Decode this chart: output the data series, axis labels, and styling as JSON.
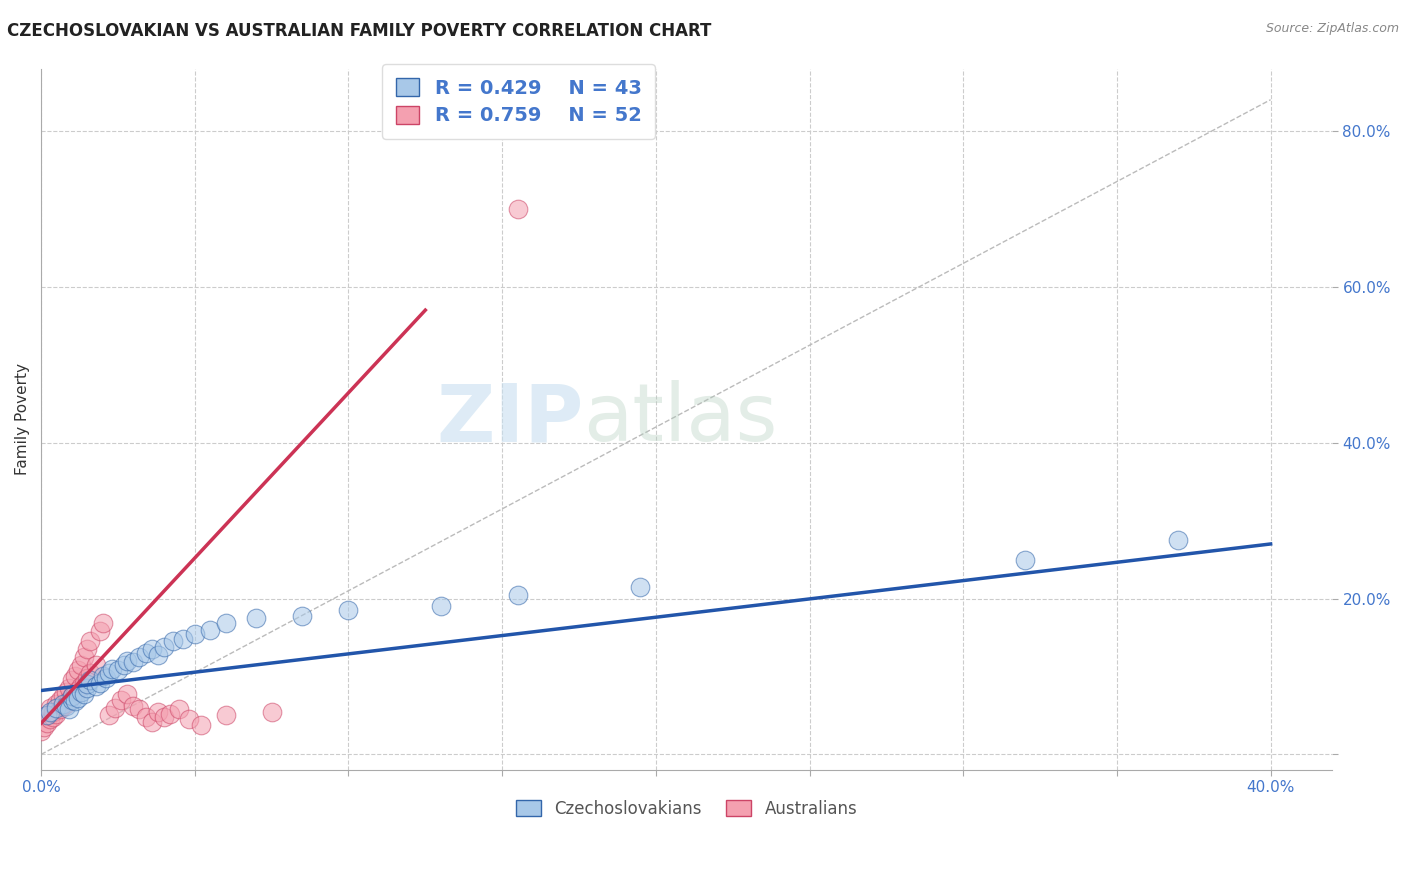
{
  "title": "CZECHOSLOVAKIAN VS AUSTRALIAN FAMILY POVERTY CORRELATION CHART",
  "source": "Source: ZipAtlas.com",
  "ylabel": "Family Poverty",
  "xlim": [
    0.0,
    0.42
  ],
  "ylim": [
    -0.02,
    0.88
  ],
  "xticks": [
    0.0,
    0.05,
    0.1,
    0.15,
    0.2,
    0.25,
    0.3,
    0.35,
    0.4
  ],
  "yticks": [
    0.0,
    0.2,
    0.4,
    0.6,
    0.8
  ],
  "background_color": "#ffffff",
  "grid_color": "#cccccc",
  "watermark_zip": "ZIP",
  "watermark_atlas": "atlas",
  "blue_color": "#a8c8e8",
  "pink_color": "#f4a0b0",
  "blue_edge": "#3366aa",
  "pink_edge": "#cc4466",
  "blue_line_color": "#2255aa",
  "pink_line_color": "#cc3355",
  "r_blue": 0.429,
  "n_blue": 43,
  "r_pink": 0.759,
  "n_pink": 52,
  "blue_scatter_x": [
    0.002,
    0.003,
    0.005,
    0.007,
    0.008,
    0.009,
    0.01,
    0.01,
    0.011,
    0.012,
    0.013,
    0.014,
    0.015,
    0.015,
    0.016,
    0.018,
    0.019,
    0.02,
    0.021,
    0.022,
    0.023,
    0.025,
    0.027,
    0.028,
    0.03,
    0.032,
    0.034,
    0.036,
    0.038,
    0.04,
    0.043,
    0.046,
    0.05,
    0.055,
    0.06,
    0.07,
    0.085,
    0.1,
    0.13,
    0.155,
    0.195,
    0.32,
    0.37
  ],
  "blue_scatter_y": [
    0.05,
    0.055,
    0.06,
    0.065,
    0.062,
    0.058,
    0.07,
    0.075,
    0.068,
    0.072,
    0.08,
    0.078,
    0.085,
    0.09,
    0.095,
    0.088,
    0.092,
    0.1,
    0.098,
    0.105,
    0.11,
    0.108,
    0.115,
    0.12,
    0.118,
    0.125,
    0.13,
    0.135,
    0.128,
    0.138,
    0.145,
    0.148,
    0.155,
    0.16,
    0.168,
    0.175,
    0.178,
    0.185,
    0.19,
    0.205,
    0.215,
    0.25,
    0.275
  ],
  "pink_scatter_x": [
    0.0,
    0.001,
    0.002,
    0.002,
    0.003,
    0.003,
    0.004,
    0.004,
    0.005,
    0.005,
    0.006,
    0.006,
    0.007,
    0.007,
    0.008,
    0.008,
    0.009,
    0.009,
    0.01,
    0.01,
    0.011,
    0.011,
    0.012,
    0.012,
    0.013,
    0.013,
    0.014,
    0.014,
    0.015,
    0.015,
    0.016,
    0.016,
    0.018,
    0.019,
    0.02,
    0.022,
    0.024,
    0.026,
    0.028,
    0.03,
    0.032,
    0.034,
    0.036,
    0.038,
    0.04,
    0.042,
    0.045,
    0.048,
    0.052,
    0.06,
    0.075,
    0.155
  ],
  "pink_scatter_y": [
    0.03,
    0.035,
    0.04,
    0.05,
    0.045,
    0.06,
    0.048,
    0.055,
    0.052,
    0.065,
    0.058,
    0.07,
    0.062,
    0.075,
    0.065,
    0.08,
    0.07,
    0.085,
    0.075,
    0.095,
    0.078,
    0.1,
    0.082,
    0.108,
    0.088,
    0.115,
    0.092,
    0.125,
    0.098,
    0.135,
    0.105,
    0.145,
    0.115,
    0.158,
    0.168,
    0.05,
    0.06,
    0.07,
    0.078,
    0.062,
    0.058,
    0.048,
    0.042,
    0.055,
    0.048,
    0.052,
    0.058,
    0.045,
    0.038,
    0.05,
    0.055,
    0.7
  ],
  "blue_line_x": [
    0.0,
    0.4
  ],
  "blue_line_y": [
    0.082,
    0.27
  ],
  "pink_line_x": [
    0.0,
    0.125
  ],
  "pink_line_y": [
    0.04,
    0.57
  ],
  "ref_line_x": [
    0.0,
    0.4
  ],
  "ref_line_y": [
    0.0,
    0.84
  ]
}
